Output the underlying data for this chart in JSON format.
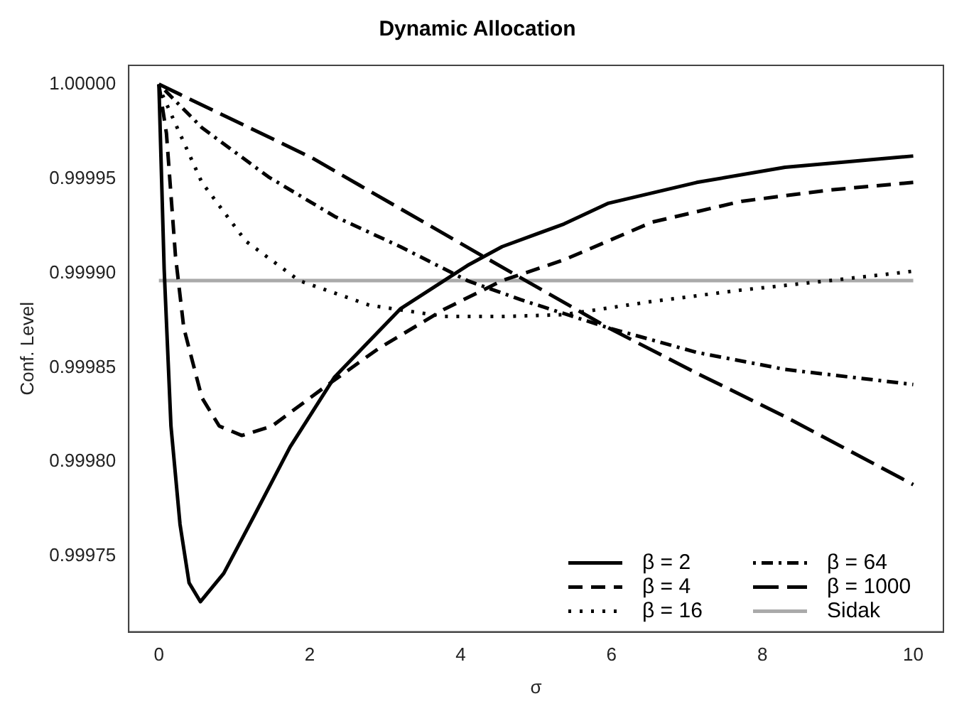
{
  "chart_data": {
    "type": "line",
    "title": "Dynamic Allocation",
    "xlabel": "σ",
    "ylabel": "Conf. Level",
    "xlim": [
      -0.4,
      10.4
    ],
    "xticks": [
      0,
      2,
      4,
      6,
      8,
      10
    ],
    "ylim": [
      0.99971,
      1.00001
    ],
    "yticks": [
      0.99975,
      {
        "value": 0.9998,
        "label": "0.99980"
      },
      0.99985,
      {
        "value": 0.9999,
        "label": "0.99990"
      },
      0.99995,
      {
        "value": 1,
        "label": "1.00000"
      }
    ],
    "grid": false,
    "legend": "bottom right",
    "marker": "none",
    "series": [
      {
        "name": "β = 2",
        "color": "#000000",
        "line_style": "solid",
        "x": [
          0,
          0.07,
          0.16,
          0.28,
          0.4,
          0.55,
          0.86,
          1.27,
          1.74,
          2.33,
          3.2,
          4.09,
          4.55,
          5.37,
          5.96,
          7.13,
          8.3,
          10
        ],
        "values": [
          1.0,
          0.999902,
          0.999819,
          0.999767,
          0.999736,
          0.999726,
          0.999741,
          0.999772,
          0.999808,
          0.999845,
          0.999881,
          0.999904,
          0.999914,
          0.999926,
          0.999937,
          0.999948,
          0.999956,
          0.999962
        ]
      },
      {
        "name": "β = 4",
        "color": "#000000",
        "line_style": "dashed",
        "x": [
          0,
          0.1,
          0.22,
          0.33,
          0.57,
          0.8,
          1.1,
          1.5,
          2.21,
          2.91,
          3.79,
          4.55,
          5.37,
          6.54,
          7.72,
          8.89,
          10
        ],
        "values": [
          1.0,
          0.999974,
          0.999909,
          0.999871,
          0.999834,
          0.999819,
          0.999814,
          0.999819,
          0.99984,
          0.99986,
          0.999881,
          0.999896,
          0.999907,
          0.999927,
          0.999938,
          0.999944,
          0.999948
        ]
      },
      {
        "name": "β = 16",
        "color": "#000000",
        "line_style": "dotted",
        "x": [
          0,
          0.04,
          0.22,
          0.57,
          1.15,
          1.86,
          2.79,
          3.79,
          4.55,
          5.37,
          6.54,
          7.72,
          8.89,
          10
        ],
        "values": [
          1.0,
          0.999995,
          0.999979,
          0.999948,
          0.999917,
          0.999896,
          0.999883,
          0.999877,
          0.999877,
          0.999878,
          0.999885,
          0.999891,
          0.999896,
          0.999901
        ]
      },
      {
        "name": "β = 64",
        "color": "#000000",
        "line_style": "dashdot",
        "x": [
          0,
          0.57,
          1.45,
          2.33,
          3.2,
          4.09,
          4.79,
          5.96,
          7.13,
          8.3,
          10
        ],
        "values": [
          1.0,
          0.999977,
          0.999951,
          0.99993,
          0.999914,
          0.999896,
          0.999886,
          0.999871,
          0.999858,
          0.999849,
          0.999841
        ]
      },
      {
        "name": "β = 1000",
        "color": "#000000",
        "line_style": "longdash",
        "x": [
          0,
          2.03,
          4.38,
          5.96,
          7.13,
          8.3,
          10
        ],
        "values": [
          1.0,
          0.999961,
          0.999907,
          0.999871,
          0.999847,
          0.999824,
          0.999788
        ]
      },
      {
        "name": "Sidak",
        "color": "#aaaaaa",
        "line_style": "solid",
        "x": [
          0,
          10
        ],
        "values": [
          0.999896,
          0.999896
        ]
      }
    ]
  }
}
